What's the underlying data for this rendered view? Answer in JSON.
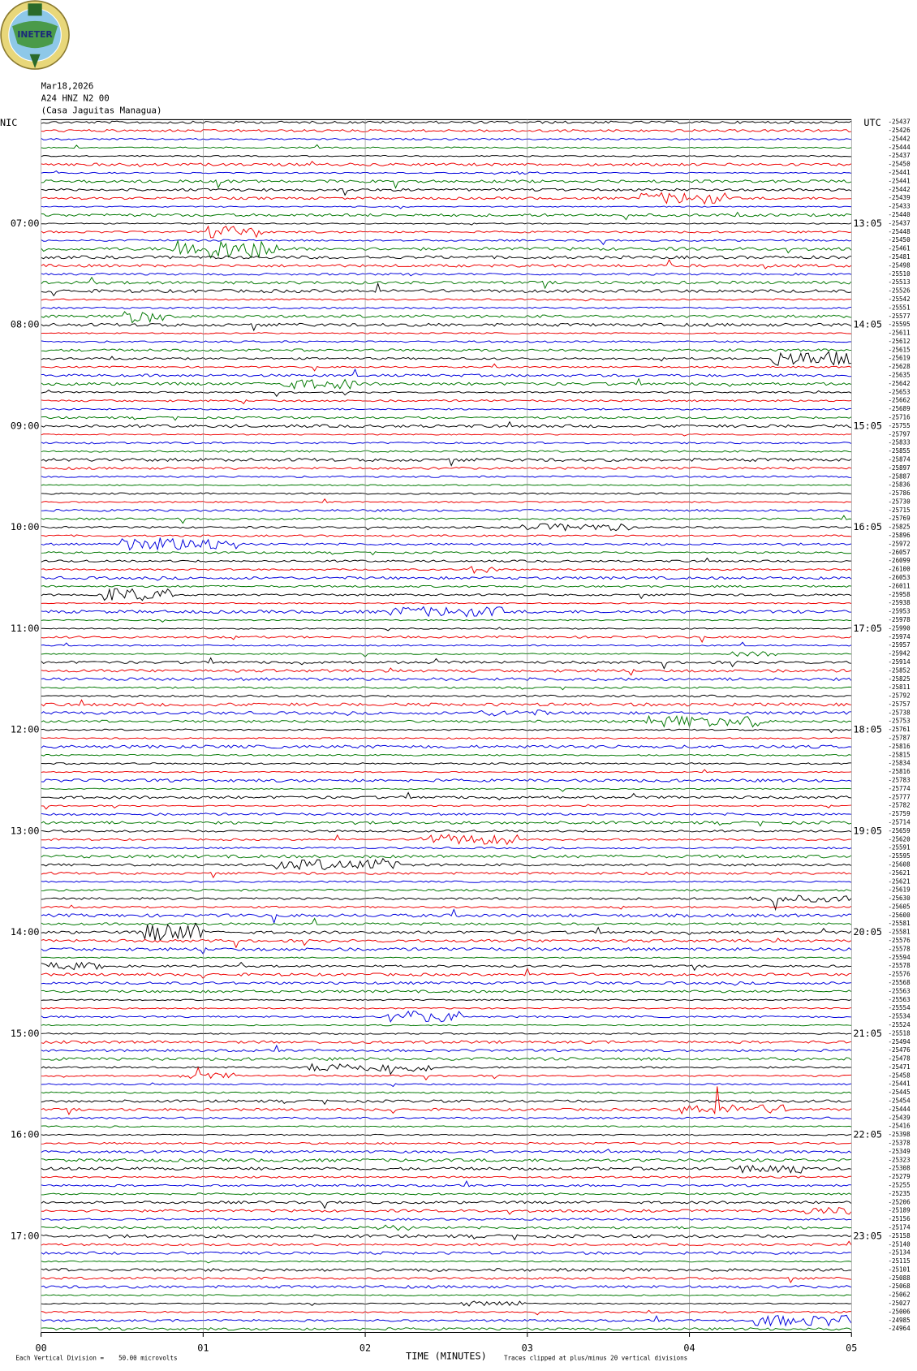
{
  "header": {
    "logo": "INETER",
    "date": "Mar18,2026",
    "station": "A24 HNZ N2 00",
    "location": "(Casa Jaguitas Managua)"
  },
  "left_label": "NIC",
  "right_label": "UTC",
  "local_times": [
    "07:00",
    "08:00",
    "09:00",
    "10:00",
    "11:00",
    "12:00",
    "13:00",
    "14:00",
    "15:00",
    "16:00",
    "17:00"
  ],
  "utc_times": [
    "13:05",
    "14:05",
    "15:05",
    "16:05",
    "17:05",
    "18:05",
    "19:05",
    "20:05",
    "21:05",
    "22:05",
    "23:05"
  ],
  "trace_offsets": [
    "-25437",
    "-25426",
    "-25442",
    "-25444",
    "-25437",
    "-25450",
    "-25441",
    "-25441",
    "-25442",
    "-25439",
    "-25433",
    "-25440",
    "-25437",
    "-25448",
    "-25450",
    "-25461",
    "-25481",
    "-25498",
    "-25510",
    "-25513",
    "-25526",
    "-25542",
    "-25551",
    "-25577",
    "-25595",
    "-25611",
    "-25612",
    "-25615",
    "-25619",
    "-25628",
    "-25635",
    "-25642",
    "-25653",
    "-25662",
    "-25689",
    "-25716",
    "-25755",
    "-25797",
    "-25833",
    "-25855",
    "-25874",
    "-25897",
    "-25887",
    "-25836",
    "-25786",
    "-25730",
    "-25715",
    "-25769",
    "-25825",
    "-25896",
    "-25972",
    "-26057",
    "-26099",
    "-26100",
    "-26053",
    "-26011",
    "-25958",
    "-25938",
    "-25953",
    "-25978",
    "-25990",
    "-25974",
    "-25957",
    "-25942",
    "-25914",
    "-25852",
    "-25825",
    "-25811",
    "-25792",
    "-25757",
    "-25738",
    "-25753",
    "-25761",
    "-25787",
    "-25816",
    "-25815",
    "-25834",
    "-25816",
    "-25783",
    "-25774",
    "-25777",
    "-25782",
    "-25759",
    "-25714",
    "-25659",
    "-25620",
    "-25591",
    "-25595",
    "-25608",
    "-25621",
    "-25621",
    "-25619",
    "-25630",
    "-25605",
    "-25600",
    "-25581",
    "-25581",
    "-25576",
    "-25578",
    "-25594",
    "-25578",
    "-25576",
    "-25568",
    "-25563",
    "-25563",
    "-25554",
    "-25534",
    "-25524",
    "-25518",
    "-25494",
    "-25476",
    "-25478",
    "-25471",
    "-25458",
    "-25441",
    "-25445",
    "-25454",
    "-25444",
    "-25439",
    "-25416",
    "-25398",
    "-25378",
    "-25349",
    "-25323",
    "-25308",
    "-25279",
    "-25255",
    "-25235",
    "-25206",
    "-25189",
    "-25156",
    "-25174",
    "-25158",
    "-25140",
    "-25134",
    "-25115",
    "-25101",
    "-25088",
    "-25068",
    "-25062",
    "-25027",
    "-25006",
    "-24985",
    "-24964"
  ],
  "x_axis": {
    "title": "TIME (MINUTES)",
    "ticks": [
      "00",
      "01",
      "02",
      "03",
      "04",
      "05"
    ]
  },
  "footer": {
    "scale": "Each Vertical Division =    50.00 microvolts",
    "clip": "Traces clipped at plus/minus 20 vertical divisions"
  }
}
